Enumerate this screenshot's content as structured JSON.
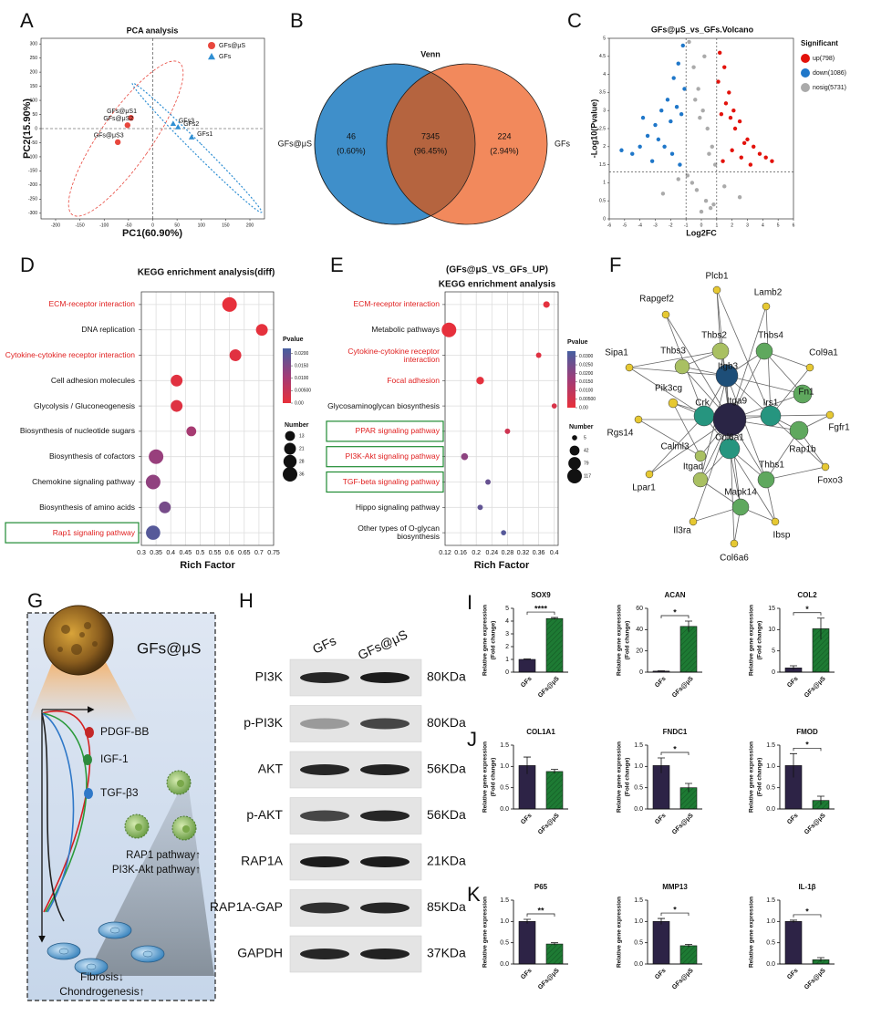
{
  "panels": [
    "A",
    "B",
    "C",
    "D",
    "E",
    "F",
    "G",
    "H",
    "I",
    "J",
    "K"
  ],
  "chart_data": [
    {
      "type": "scatter",
      "title": "PCA analysis",
      "xlabel": "PC1(60.90%)",
      "ylabel": "PC2(15.90%)",
      "xlim": [
        -230,
        230
      ],
      "ylim": [
        -320,
        320
      ],
      "xticks": [
        -200,
        -150,
        -100,
        -50,
        0,
        50,
        100,
        150,
        200
      ],
      "yticks": [
        -300,
        -250,
        -200,
        -150,
        -100,
        -50,
        0,
        50,
        100,
        150,
        200,
        250,
        300
      ],
      "legend": "upper right",
      "series": [
        {
          "name": "GFs@μS",
          "color": "#e8473d",
          "marker": "circle",
          "x": [
            -45,
            -52,
            -72
          ],
          "values": [
            38,
            12,
            -48
          ],
          "labels": [
            "GFs@μS1",
            "GFs@μS2",
            "GFs@μS3"
          ]
        },
        {
          "name": "GFs",
          "color": "#2f8fd3",
          "marker": "triangle",
          "x": [
            42,
            52,
            80
          ],
          "values": [
            18,
            6,
            -30
          ],
          "labels": [
            "GFs3",
            "GFs2",
            "GFs1"
          ]
        }
      ]
    },
    {
      "type": "venn",
      "title": "Venn",
      "sets": [
        {
          "name": "GFs@μS",
          "color": "#3f8fca"
        },
        {
          "name": "GFs",
          "color": "#f2895c"
        }
      ],
      "overlap_color": "#b5643f",
      "values": [
        46,
        7345,
        224
      ],
      "percents": [
        0.6,
        96.45,
        2.94
      ],
      "percent_labels": [
        "(0.60%)",
        "(96.45%)",
        "(2.94%)"
      ]
    },
    {
      "type": "volcano",
      "title": "GFs@μS_vs_GFs.Volcano",
      "xlabel": "Log2FC",
      "ylabel": "-Log10(Pvalue)",
      "legend_title": "Significant",
      "legend": "right",
      "xlim": [
        -6,
        6
      ],
      "ylim": [
        0,
        5
      ],
      "xticks": [
        -6,
        -5,
        -4,
        -3,
        -2,
        -1,
        0,
        1,
        2,
        3,
        4,
        5,
        6
      ],
      "yticks": [
        0,
        0.5,
        1,
        1.5,
        2,
        2.5,
        3,
        3.5,
        4,
        4.5,
        5
      ],
      "thresholds": {
        "x": [
          -1,
          1
        ],
        "y": 1.3
      },
      "series": [
        {
          "name": "up(798)",
          "color": "#e3120b",
          "x": [
            1.2,
            1.5,
            1.8,
            2.1,
            2.5,
            3.0,
            3.4,
            3.8,
            4.2,
            4.6,
            1.1,
            1.6,
            2.2,
            2.8,
            1.3,
            2.0,
            3.2,
            1.4,
            1.9,
            2.6
          ],
          "values": [
            4.6,
            4.2,
            3.5,
            3.0,
            2.7,
            2.2,
            2.0,
            1.8,
            1.7,
            1.6,
            3.8,
            3.2,
            2.5,
            2.1,
            2.9,
            1.9,
            1.5,
            1.6,
            2.8,
            1.7
          ]
        },
        {
          "name": "down(1086)",
          "color": "#1f77c9",
          "x": [
            -1.2,
            -1.5,
            -1.8,
            -2.2,
            -2.6,
            -3.0,
            -3.5,
            -4.0,
            -4.5,
            -5.2,
            -1.1,
            -1.6,
            -2.0,
            -2.8,
            -1.3,
            -1.9,
            -3.2,
            -1.4,
            -2.4,
            -3.8
          ],
          "values": [
            4.8,
            4.3,
            3.9,
            3.3,
            3.0,
            2.6,
            2.3,
            2.0,
            1.8,
            1.9,
            3.6,
            3.1,
            2.7,
            2.2,
            2.9,
            1.8,
            1.6,
            1.5,
            2.0,
            2.8
          ]
        },
        {
          "name": "nosig(5731)",
          "color": "#aaaaaa",
          "x": [
            -0.8,
            -0.5,
            -0.2,
            0.1,
            0.4,
            0.7,
            0.9,
            -0.9,
            -0.3,
            0.3,
            0.6,
            -0.6,
            0,
            0.2,
            -0.4,
            1.5,
            -1.5,
            2.5,
            -2.5,
            0.5,
            -0.1,
            0.8
          ],
          "values": [
            4.9,
            4.2,
            3.6,
            3.0,
            2.5,
            2.0,
            1.5,
            1.2,
            0.8,
            0.5,
            0.3,
            1.0,
            0.2,
            4.5,
            3.3,
            0.9,
            1.1,
            0.6,
            0.7,
            1.8,
            2.8,
            0.4
          ]
        }
      ]
    },
    {
      "type": "dot",
      "title": "KEGG enrichment analysis(diff)",
      "xlabel": "Rich Factor",
      "pvalue_title": "Pvalue",
      "size_title": "Number",
      "categories": [
        "ECM-receptor interaction",
        "DNA replication",
        "Cytokine-cytokine receptor interaction",
        "Cell adhesion molecules",
        "Glycolysis / Gluconeogenesis",
        "Biosynthesis of nucleotide sugars",
        "Biosynthesis of cofactors",
        "Chemokine signaling pathway",
        "Biosynthesis of amino acids",
        "Rap1 signaling pathway"
      ],
      "values": [
        0.6,
        0.71,
        0.62,
        0.42,
        0.42,
        0.47,
        0.35,
        0.34,
        0.38,
        0.34
      ],
      "sizes": [
        36,
        21,
        21,
        21,
        21,
        13,
        36,
        36,
        21,
        34
      ],
      "pvalues": [
        0.0002,
        0.0005,
        0.001,
        0.001,
        0.0015,
        0.01,
        0.012,
        0.013,
        0.016,
        0.02
      ],
      "label_colors": [
        "#e02020",
        "#111111",
        "#e02020",
        "#111111",
        "#111111",
        "#111111",
        "#111111",
        "#111111",
        "#111111",
        "#e02020"
      ],
      "boxed": [
        false,
        false,
        false,
        false,
        false,
        false,
        false,
        false,
        false,
        true
      ],
      "xlim": [
        0.3,
        0.75
      ],
      "xticks": [
        0.3,
        0.35,
        0.4,
        0.45,
        0.5,
        0.55,
        0.6,
        0.65,
        0.7,
        0.75
      ],
      "pvalue_lim": [
        0,
        0.022
      ],
      "pvalue_ticks": [
        {
          "value": 0.02,
          "label": "0.0200"
        },
        {
          "value": 0.015,
          "label": "0.0150"
        },
        {
          "value": 0.01,
          "label": "0.0100"
        },
        {
          "value": 0.005,
          "label": "0.00500"
        },
        {
          "value": 0,
          "label": "0.00"
        }
      ],
      "size_ticks": [
        13,
        21,
        28,
        36
      ]
    },
    {
      "type": "dot",
      "title": "(GFs@μS_VS_GFs_UP)",
      "subtitle": "KEGG enrichment analysis",
      "xlabel": "Rich Factor",
      "pvalue_title": "Pvalue",
      "size_title": "Number",
      "categories": [
        "ECM-receptor interaction",
        "Metabolic pathways",
        "Cytokine-cytokine receptor interaction",
        "Focal adhesion",
        "Glycosaminoglycan biosynthesis",
        "PPAR signaling pathway",
        "PI3K-Akt signaling pathway",
        "TGF-beta signaling pathway",
        "Hippo signaling pathway",
        "Other types of O-glycan biosynthesis"
      ],
      "values": [
        0.38,
        0.13,
        0.36,
        0.21,
        0.4,
        0.28,
        0.17,
        0.23,
        0.21,
        0.27
      ],
      "sizes": [
        12,
        117,
        6,
        20,
        5,
        6,
        15,
        6,
        6,
        5
      ],
      "pvalues": [
        0.001,
        0.0005,
        0.002,
        0.001,
        0.004,
        0.006,
        0.02,
        0.027,
        0.028,
        0.03
      ],
      "label_colors": [
        "#e02020",
        "#111111",
        "#e02020",
        "#e02020",
        "#111111",
        "#e02020",
        "#e02020",
        "#e02020",
        "#111111",
        "#111111"
      ],
      "boxed": [
        false,
        false,
        false,
        false,
        false,
        true,
        true,
        true,
        false,
        false
      ],
      "xlim": [
        0.12,
        0.41
      ],
      "xticks": [
        0.12,
        0.16,
        0.2,
        0.24,
        0.28,
        0.32,
        0.36,
        0.4
      ],
      "pvalue_lim": [
        0,
        0.033
      ],
      "pvalue_ticks": [
        {
          "value": 0.03,
          "label": "0.0300"
        },
        {
          "value": 0.025,
          "label": "0.0250"
        },
        {
          "value": 0.02,
          "label": "0.0200"
        },
        {
          "value": 0.015,
          "label": "0.0150"
        },
        {
          "value": 0.01,
          "label": "0.0100"
        },
        {
          "value": 0.005,
          "label": "0.00500"
        },
        {
          "value": 0,
          "label": "0.00"
        }
      ],
      "size_ticks": [
        5,
        42,
        79,
        117
      ]
    },
    {
      "type": "bar",
      "title": "SOX9",
      "ylabel": [
        "Relative gene expression",
        "(Fold change)"
      ],
      "categories": [
        "GFs",
        "GFs@μS"
      ],
      "colors": [
        "#2d2346",
        "#1e7b34"
      ],
      "values": [
        1,
        4.2
      ],
      "errors": [
        0.03,
        0.08
      ],
      "significance": "****",
      "ylim": [
        0,
        5
      ],
      "yticks": [
        0,
        1,
        2,
        3,
        4,
        5
      ]
    },
    {
      "type": "bar",
      "title": "ACAN",
      "ylabel": [
        "Relative gene expression",
        "(Fold change)"
      ],
      "categories": [
        "GFs",
        "GFs@μS"
      ],
      "colors": [
        "#2d2346",
        "#1e7b34"
      ],
      "values": [
        1,
        43
      ],
      "errors": [
        0.3,
        5
      ],
      "significance": "*",
      "ylim": [
        0,
        60
      ],
      "yticks": [
        0,
        20,
        40,
        60
      ]
    },
    {
      "type": "bar",
      "title": "COL2",
      "ylabel": [
        "Relative gene expression",
        "(Fold change)"
      ],
      "categories": [
        "GFs",
        "GFs@μS"
      ],
      "colors": [
        "#2d2346",
        "#1e7b34"
      ],
      "values": [
        1,
        10.2
      ],
      "errors": [
        0.5,
        2.5
      ],
      "significance": "*",
      "ylim": [
        0,
        15
      ],
      "yticks": [
        0,
        5,
        10,
        15
      ]
    },
    {
      "type": "bar",
      "title": "COL1A1",
      "ylabel": [
        "Relative gene expression",
        "(Fold change)"
      ],
      "categories": [
        "GFs",
        "GFs@μS"
      ],
      "colors": [
        "#2d2346",
        "#1e7b34"
      ],
      "values": [
        1.02,
        0.88
      ],
      "errors": [
        0.2,
        0.05
      ],
      "ylim": [
        0,
        1.5
      ],
      "yticks": [
        {
          "value": 0,
          "label": "0.0"
        },
        0.5,
        {
          "value": 1,
          "label": "1.0"
        },
        1.5
      ]
    },
    {
      "type": "bar",
      "title": "FNDC1",
      "ylabel": [
        "Relative gene expression",
        "(Fold change)"
      ],
      "categories": [
        "GFs",
        "GFs@μS"
      ],
      "colors": [
        "#2d2346",
        "#1e7b34"
      ],
      "values": [
        1.02,
        0.5
      ],
      "errors": [
        0.18,
        0.1
      ],
      "significance": "*",
      "ylim": [
        0,
        1.5
      ],
      "yticks": [
        {
          "value": 0,
          "label": "0.0"
        },
        0.5,
        {
          "value": 1,
          "label": "1.0"
        },
        1.5
      ]
    },
    {
      "type": "bar",
      "title": "FMOD",
      "ylabel": [
        "Relative gene expression",
        "(Fold change)"
      ],
      "categories": [
        "GFs",
        "GFs@μS"
      ],
      "colors": [
        "#2d2346",
        "#1e7b34"
      ],
      "values": [
        1.02,
        0.2
      ],
      "errors": [
        0.28,
        0.1
      ],
      "significance": "*",
      "ylim": [
        0,
        1.5
      ],
      "yticks": [
        {
          "value": 0,
          "label": "0.0"
        },
        0.5,
        {
          "value": 1,
          "label": "1.0"
        },
        1.5
      ]
    },
    {
      "type": "bar",
      "title": "P65",
      "ylabel": [
        "Relative gene expression"
      ],
      "categories": [
        "GFs",
        "GFs@μS"
      ],
      "colors": [
        "#2d2346",
        "#1e7b34"
      ],
      "values": [
        1,
        0.47
      ],
      "errors": [
        0.05,
        0.03
      ],
      "significance": "**",
      "ylim": [
        0,
        1.5
      ],
      "yticks": [
        {
          "value": 0,
          "label": "0.0"
        },
        0.5,
        {
          "value": 1,
          "label": "1.0"
        },
        1.5
      ]
    },
    {
      "type": "bar",
      "title": "MMP13",
      "ylabel": [
        "Relative gene expression"
      ],
      "categories": [
        "GFs",
        "GFs@μS"
      ],
      "colors": [
        "#2d2346",
        "#1e7b34"
      ],
      "values": [
        1,
        0.43
      ],
      "errors": [
        0.07,
        0.03
      ],
      "significance": "*",
      "ylim": [
        0,
        1.5
      ],
      "yticks": [
        {
          "value": 0,
          "label": "0.0"
        },
        0.5,
        {
          "value": 1,
          "label": "1.0"
        },
        1.5
      ]
    },
    {
      "type": "bar",
      "title": "IL-1β",
      "ylabel": [
        "Relative gene expression"
      ],
      "categories": [
        "GFs",
        "GFs@μS"
      ],
      "colors": [
        "#2d2346",
        "#1e7b34"
      ],
      "values": [
        1,
        0.1
      ],
      "errors": [
        0.03,
        0.05
      ],
      "significance": "*",
      "ylim": [
        0,
        1.5
      ],
      "yticks": [
        {
          "value": 0,
          "label": "0.0"
        },
        0.5,
        {
          "value": 1,
          "label": "1.0"
        },
        1.5
      ]
    }
  ],
  "network": {
    "nodes": [
      "Plcb1",
      "Lamb2",
      "Rapgef2",
      "Thbs2",
      "Thbs4",
      "Col9a1",
      "Sipa1",
      "Thbs3",
      "Itgb3",
      "Fn1",
      "Pik3cg",
      "Crk",
      "Itga9",
      "Irs1",
      "Fgfr1",
      "Rgs14",
      "Calml3",
      "Col6a1",
      "Rap1b",
      "Lpar1",
      "Itgad",
      "Thbs1",
      "Foxo3",
      "Mapk14",
      "Il3ra",
      "Ibsp",
      "Col6a6"
    ]
  },
  "schematic": {
    "sphere_label": "GFs@μS",
    "factors": [
      "PDGF-BB",
      "IGF-1",
      "TGF-β3"
    ],
    "pathways": [
      "RAP1 pathway↑",
      "PI3K-Akt pathway↑"
    ],
    "outcomes": [
      "Fibrosis↓",
      "Chondrogenesis↑"
    ]
  },
  "western_blot": {
    "columns": [
      "GFs",
      "GFs@μS"
    ],
    "rows": [
      {
        "protein": "PI3K",
        "size": "80KDa"
      },
      {
        "protein": "p-PI3K",
        "size": "80KDa"
      },
      {
        "protein": "AKT",
        "size": "56KDa"
      },
      {
        "protein": "p-AKT",
        "size": "56KDa"
      },
      {
        "protein": "RAP1A",
        "size": "21KDa"
      },
      {
        "protein": "RAP1A-GAP",
        "size": "85KDa"
      },
      {
        "protein": "GAPDH",
        "size": "37KDa"
      }
    ]
  }
}
